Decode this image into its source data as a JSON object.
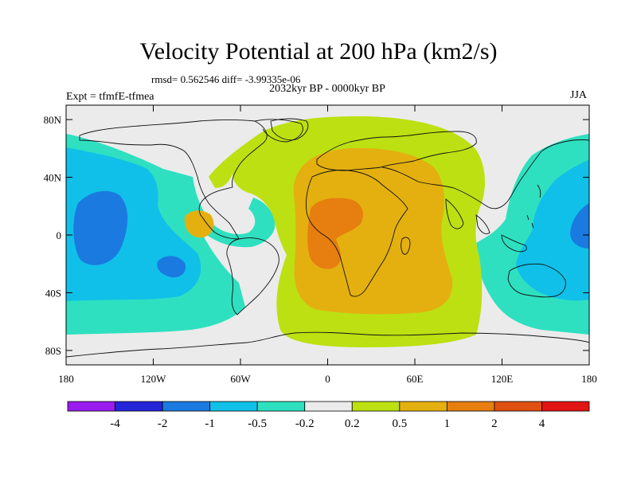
{
  "title": "Velocity Potential at 200 hPa (km2/s)",
  "stats": "rmsd= 0.562546 diff= -3.99335e-06",
  "subtitle": "2032kyr BP - 0000kyr BP",
  "experiment": "Expt = tfmfE-tfmea",
  "season": "JJA",
  "map": {
    "x_ticks": [
      "180",
      "120W",
      "60W",
      "0",
      "60E",
      "120E",
      "180"
    ],
    "x_tick_lons": [
      -180,
      -120,
      -60,
      0,
      60,
      120,
      180
    ],
    "y_ticks": [
      "80N",
      "40N",
      "0",
      "40S",
      "80S"
    ],
    "y_tick_lats": [
      80,
      40,
      0,
      -40,
      -80
    ],
    "lon_range": [
      -180,
      180
    ],
    "lat_range": [
      -90,
      90
    ]
  },
  "colorbar": {
    "labels": [
      "-4",
      "-2",
      "-1",
      "-0.5",
      "-0.2",
      "0.2",
      "0.5",
      "1",
      "2",
      "4"
    ],
    "colors": [
      "#9a1cf0",
      "#2424d8",
      "#1a7ae0",
      "#10c0e8",
      "#2ee0c0",
      "#ebebeb",
      "#bce012",
      "#e4b010",
      "#e67e10",
      "#e05010",
      "#e21414"
    ]
  }
}
